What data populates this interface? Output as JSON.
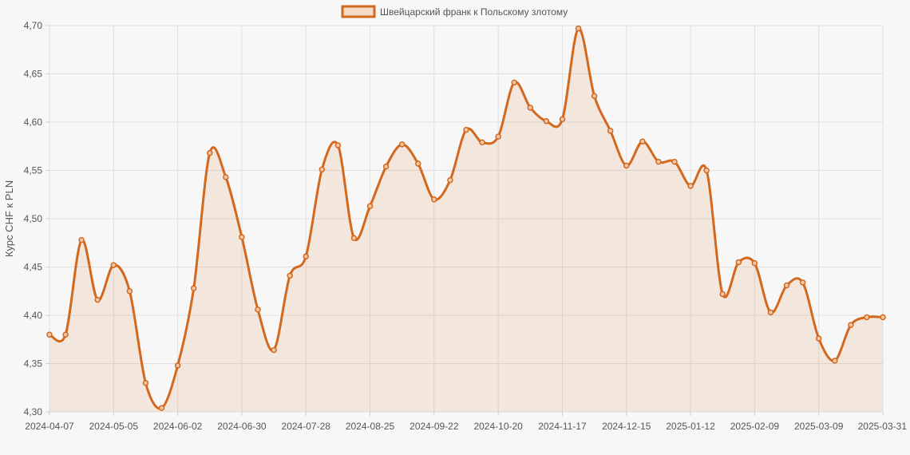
{
  "chart_data": {
    "type": "line",
    "legend_position": "top-center",
    "grid": true,
    "ylabel": "Курс CHF к PLN",
    "ylim": [
      4.3,
      4.7
    ],
    "y_ticks": [
      "4,30",
      "4,35",
      "4,40",
      "4,45",
      "4,50",
      "4,55",
      "4,60",
      "4,65",
      "4,70"
    ],
    "y_tick_values": [
      4.3,
      4.35,
      4.4,
      4.45,
      4.5,
      4.55,
      4.6,
      4.65,
      4.7
    ],
    "x_tick_labels": [
      "2024-04-07",
      "2024-05-05",
      "2024-06-02",
      "2024-06-30",
      "2024-07-28",
      "2024-08-25",
      "2024-09-22",
      "2024-10-20",
      "2024-11-17",
      "2024-12-15",
      "2025-01-12",
      "2025-02-09",
      "2025-03-09",
      "2025-03-31"
    ],
    "x_tick_index": [
      0,
      4,
      8,
      12,
      16,
      20,
      24,
      28,
      32,
      36,
      40,
      44,
      48,
      52
    ],
    "colors": {
      "line": "#d2691e",
      "fill": "rgba(210,105,30,0.12)",
      "point_fill": "#f2c8a8"
    },
    "series": [
      {
        "name": "Швейцарский франк к Польскому злотому",
        "values": [
          4.38,
          4.38,
          4.478,
          4.416,
          4.452,
          4.425,
          4.33,
          4.304,
          4.348,
          4.428,
          4.568,
          4.543,
          4.481,
          4.406,
          4.364,
          4.441,
          4.461,
          4.551,
          4.576,
          4.48,
          4.513,
          4.554,
          4.577,
          4.557,
          4.52,
          4.54,
          4.592,
          4.579,
          4.585,
          4.641,
          4.615,
          4.601,
          4.603,
          4.697,
          4.627,
          4.591,
          4.555,
          4.58,
          4.559,
          4.559,
          4.534,
          4.55,
          4.422,
          4.455,
          4.454,
          4.403,
          4.431,
          4.434,
          4.376,
          4.353,
          4.39,
          4.398,
          4.398
        ]
      }
    ]
  }
}
